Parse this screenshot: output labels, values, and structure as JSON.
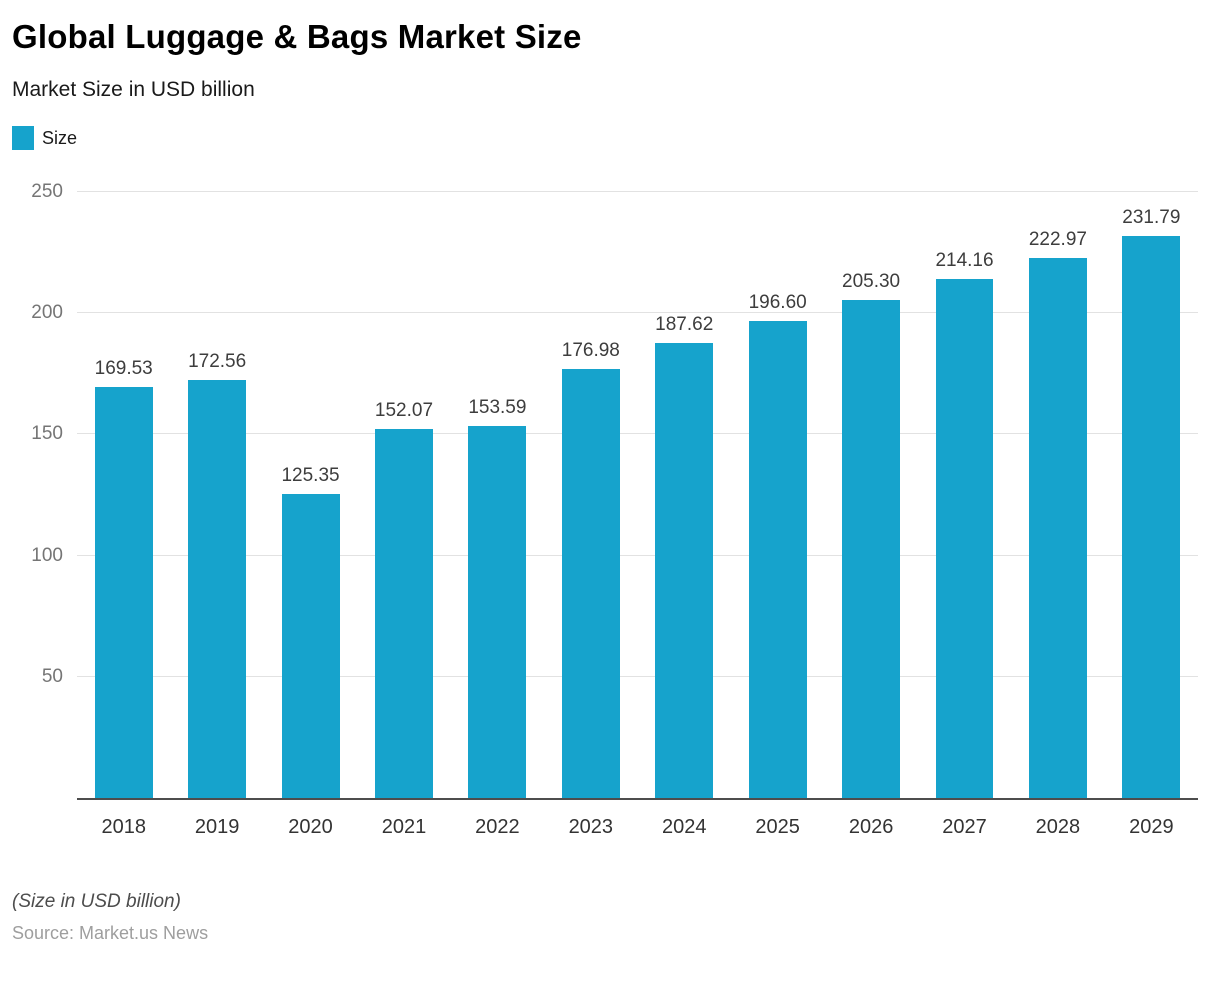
{
  "header": {
    "title": "Global Luggage & Bags Market Size",
    "subtitle": "Market Size in USD billion"
  },
  "legend": {
    "label": "Size",
    "color": "#16a3cc"
  },
  "chart_data": {
    "type": "bar",
    "title": "Global Luggage & Bags Market Size",
    "subtitle": "Market Size in USD billion",
    "categories": [
      "2018",
      "2019",
      "2020",
      "2021",
      "2022",
      "2023",
      "2024",
      "2025",
      "2026",
      "2027",
      "2028",
      "2029"
    ],
    "values": [
      169.53,
      172.56,
      125.35,
      152.07,
      153.59,
      176.98,
      187.62,
      196.6,
      205.3,
      214.16,
      222.97,
      231.79
    ],
    "value_labels": [
      "169.53",
      "172.56",
      "125.35",
      "152.07",
      "153.59",
      "176.98",
      "187.62",
      "196.60",
      "205.30",
      "214.16",
      "222.97",
      "231.79"
    ],
    "series_name": "Size",
    "xlabel": "",
    "ylabel": "",
    "ylim": [
      0,
      250
    ],
    "yticks": [
      50,
      100,
      150,
      200,
      250
    ],
    "grid": true,
    "legend_position": "top-left",
    "bar_color": "#16a3cc"
  },
  "footer": {
    "note": "(Size in USD billion)",
    "source": "Source: Market.us News"
  }
}
